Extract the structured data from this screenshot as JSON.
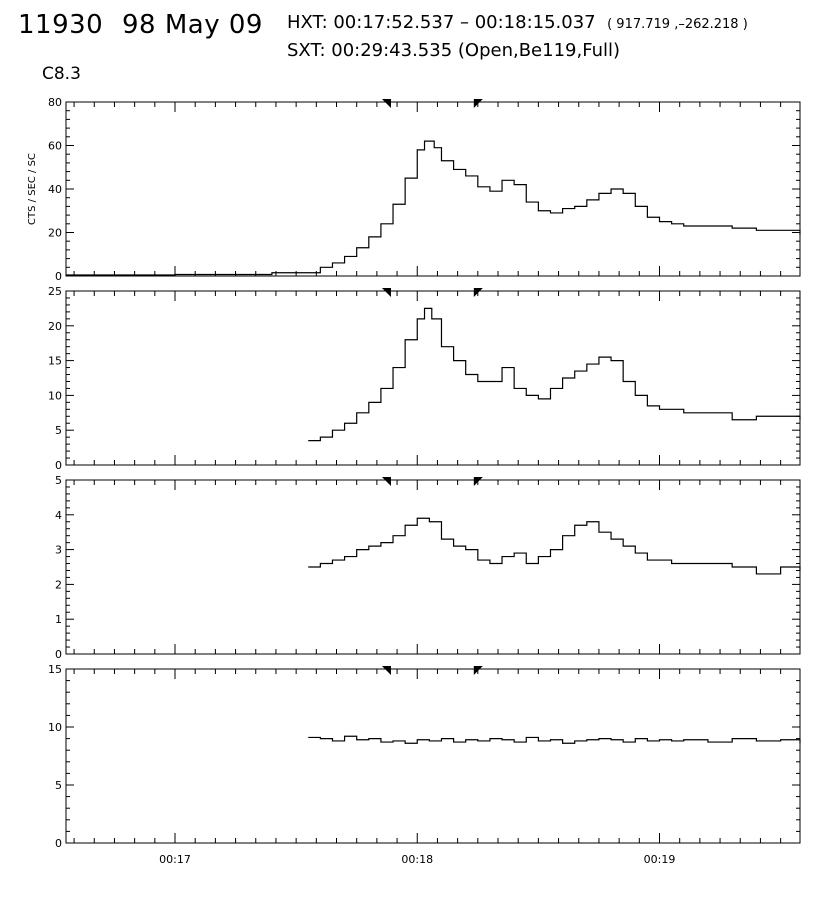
{
  "header": {
    "event_id": "11930",
    "date": "98 May 09",
    "hxt": "HXT: 00:17:52.537 – 00:18:15.037",
    "hxt_coords": "( 917.719 ,–262.218 )",
    "sxt": "SXT: 00:29:43.535 (Open,Be119,Full)",
    "goes_class": "C8.3"
  },
  "chart_data": [
    {
      "type": "line",
      "panel": 1,
      "ylabel": "CTS / SEC / SC",
      "ylim": [
        0,
        80
      ],
      "y_ticks": [
        "0",
        "20",
        "40",
        "60",
        "80"
      ],
      "x_tick_labels": [
        "00:17",
        "00:18",
        "00:19"
      ],
      "x_tick_minutes": [
        17,
        18,
        19
      ],
      "xlim_minutes": [
        16.55,
        19.58
      ],
      "markers_minutes": [
        17.875,
        18.25
      ],
      "series": [
        {
          "x": [
            16.55,
            17.0,
            17.4,
            17.55,
            17.6,
            17.65,
            17.7,
            17.75,
            17.8,
            17.85,
            17.9,
            17.95,
            18.0,
            18.03,
            18.07,
            18.1,
            18.15,
            18.2,
            18.25,
            18.3,
            18.35,
            18.4,
            18.45,
            18.5,
            18.55,
            18.6,
            18.65,
            18.7,
            18.75,
            18.8,
            18.85,
            18.9,
            18.95,
            19.0,
            19.05,
            19.1,
            19.2,
            19.3,
            19.4,
            19.5,
            19.58
          ],
          "values": [
            0.5,
            0.7,
            1.5,
            1.5,
            4,
            6,
            9,
            13,
            18,
            24,
            33,
            45,
            58,
            62,
            59,
            53,
            49,
            46,
            41,
            39,
            44,
            42,
            34,
            30,
            29,
            31,
            32,
            35,
            38,
            40,
            38,
            32,
            27,
            25,
            24,
            23,
            23,
            22,
            21,
            21,
            19
          ]
        }
      ]
    },
    {
      "type": "line",
      "panel": 2,
      "ylim": [
        0,
        25
      ],
      "y_ticks": [
        "0",
        "5",
        "10",
        "15",
        "20",
        "25"
      ],
      "x_tick_minutes": [
        17,
        18,
        19
      ],
      "xlim_minutes": [
        16.55,
        19.58
      ],
      "markers_minutes": [
        17.875,
        18.25
      ],
      "series": [
        {
          "x": [
            17.55,
            17.6,
            17.65,
            17.7,
            17.75,
            17.8,
            17.85,
            17.9,
            17.95,
            18.0,
            18.03,
            18.06,
            18.1,
            18.15,
            18.2,
            18.25,
            18.3,
            18.35,
            18.4,
            18.45,
            18.5,
            18.55,
            18.6,
            18.65,
            18.7,
            18.75,
            18.8,
            18.85,
            18.9,
            18.95,
            19.0,
            19.05,
            19.1,
            19.2,
            19.3,
            19.4,
            19.5,
            19.58
          ],
          "values": [
            3.5,
            4,
            5,
            6,
            7.5,
            9,
            11,
            14,
            18,
            21,
            22.5,
            21,
            17,
            15,
            13,
            12,
            12,
            14,
            11,
            10,
            9.5,
            11,
            12.5,
            13.5,
            14.5,
            15.5,
            15,
            12,
            10,
            8.5,
            8,
            8,
            7.5,
            7.5,
            6.5,
            7,
            7,
            6.5
          ]
        }
      ]
    },
    {
      "type": "line",
      "panel": 3,
      "ylim": [
        0,
        5
      ],
      "y_ticks": [
        "0",
        "1",
        "2",
        "3",
        "4",
        "5"
      ],
      "x_tick_minutes": [
        17,
        18,
        19
      ],
      "xlim_minutes": [
        16.55,
        19.58
      ],
      "markers_minutes": [
        17.875,
        18.25
      ],
      "series": [
        {
          "x": [
            17.55,
            17.6,
            17.65,
            17.7,
            17.75,
            17.8,
            17.85,
            17.9,
            17.95,
            18.0,
            18.05,
            18.1,
            18.15,
            18.2,
            18.25,
            18.3,
            18.35,
            18.4,
            18.45,
            18.5,
            18.55,
            18.6,
            18.65,
            18.7,
            18.75,
            18.8,
            18.85,
            18.9,
            18.95,
            19.0,
            19.05,
            19.1,
            19.2,
            19.3,
            19.4,
            19.5,
            19.58
          ],
          "values": [
            2.5,
            2.6,
            2.7,
            2.8,
            3.0,
            3.1,
            3.2,
            3.4,
            3.7,
            3.9,
            3.8,
            3.3,
            3.1,
            3.0,
            2.7,
            2.6,
            2.8,
            2.9,
            2.6,
            2.8,
            3.0,
            3.4,
            3.7,
            3.8,
            3.5,
            3.3,
            3.1,
            2.9,
            2.7,
            2.7,
            2.6,
            2.6,
            2.6,
            2.5,
            2.3,
            2.5,
            2.4
          ]
        }
      ]
    },
    {
      "type": "line",
      "panel": 4,
      "ylim": [
        0,
        15
      ],
      "y_ticks": [
        "0",
        "5",
        "10",
        "15"
      ],
      "x_tick_labels": [
        "00:17",
        "00:18",
        "00:19"
      ],
      "x_tick_minutes": [
        17,
        18,
        19
      ],
      "xlim_minutes": [
        16.55,
        19.58
      ],
      "markers_minutes": [
        17.875,
        18.25
      ],
      "series": [
        {
          "x": [
            17.55,
            17.6,
            17.65,
            17.7,
            17.75,
            17.8,
            17.85,
            17.9,
            17.95,
            18.0,
            18.05,
            18.1,
            18.15,
            18.2,
            18.25,
            18.3,
            18.35,
            18.4,
            18.45,
            18.5,
            18.55,
            18.6,
            18.65,
            18.7,
            18.75,
            18.8,
            18.85,
            18.9,
            18.95,
            19.0,
            19.05,
            19.1,
            19.2,
            19.3,
            19.4,
            19.5,
            19.58
          ],
          "values": [
            9.1,
            9.0,
            8.8,
            9.2,
            8.9,
            9.0,
            8.7,
            8.8,
            8.6,
            8.9,
            8.8,
            9.0,
            8.7,
            8.9,
            8.8,
            9.0,
            8.9,
            8.7,
            9.1,
            8.8,
            8.9,
            8.6,
            8.8,
            8.9,
            9.0,
            8.9,
            8.7,
            9.0,
            8.8,
            8.9,
            8.8,
            8.9,
            8.7,
            9.0,
            8.8,
            8.9,
            8.6
          ]
        }
      ]
    }
  ]
}
